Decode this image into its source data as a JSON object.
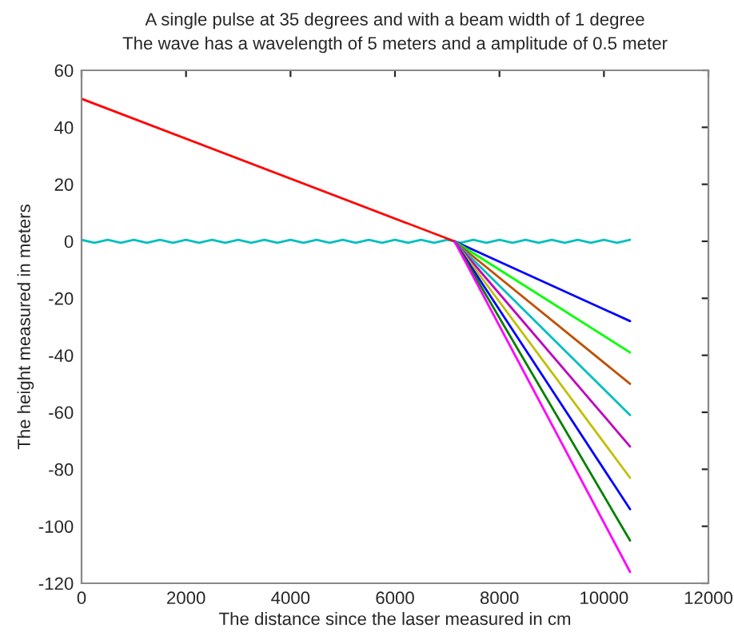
{
  "chart_data": {
    "type": "line",
    "title": "A single pulse at 35 degrees and with a beam width of 1 degree",
    "subtitle": "The wave has a wavelength of 5 meters and a amplitude of 0.5 meter",
    "xlabel": "The distance since the laser measured in cm",
    "ylabel": "The height measured in meters",
    "xlim": [
      0,
      12000
    ],
    "ylim": [
      -120,
      60
    ],
    "xticks": [
      0,
      2000,
      4000,
      6000,
      8000,
      10000,
      12000
    ],
    "yticks": [
      -120,
      -100,
      -80,
      -60,
      -40,
      -20,
      0,
      20,
      40,
      60
    ],
    "grid": false,
    "legend": false,
    "marker": "none",
    "line_style": "solid",
    "series": [
      {
        "color": "#00bfbf",
        "x": [
          0,
          250,
          500,
          750,
          1000,
          1250,
          1500,
          1750,
          2000,
          2250,
          2500,
          2750,
          3000,
          3250,
          3500,
          3750,
          4000,
          4250,
          4500,
          4750,
          5000,
          5250,
          5500,
          5750,
          6000,
          6250,
          6500,
          6750,
          7000,
          7250,
          7500,
          7750,
          8000,
          8250,
          8500,
          8750,
          9000,
          9250,
          9500,
          9750,
          10000,
          10250,
          10500
        ],
        "values": [
          0.5,
          -0.5,
          0.5,
          -0.5,
          0.5,
          -0.5,
          0.5,
          -0.5,
          0.5,
          -0.5,
          0.5,
          -0.5,
          0.5,
          -0.5,
          0.5,
          -0.5,
          0.5,
          -0.5,
          0.5,
          -0.5,
          0.5,
          -0.5,
          0.5,
          -0.5,
          0.5,
          -0.5,
          0.5,
          -0.5,
          0.5,
          -0.5,
          0.5,
          -0.5,
          0.5,
          -0.5,
          0.5,
          -0.5,
          0.5,
          -0.5,
          0.5,
          -0.5,
          0.5,
          -0.5,
          0.5
        ]
      },
      {
        "color": "#ff0000",
        "x": [
          0,
          7140
        ],
        "values": [
          50,
          0
        ]
      },
      {
        "color": "#0000ff",
        "x": [
          7140,
          10500
        ],
        "values": [
          0,
          -28
        ]
      },
      {
        "color": "#00ff00",
        "x": [
          7140,
          10500
        ],
        "values": [
          0,
          -39
        ]
      },
      {
        "color": "#c05000",
        "x": [
          7140,
          10500
        ],
        "values": [
          0,
          -50
        ]
      },
      {
        "color": "#00bfbf",
        "x": [
          7140,
          10500
        ],
        "values": [
          0,
          -61
        ]
      },
      {
        "color": "#bf00bf",
        "x": [
          7140,
          10500
        ],
        "values": [
          0,
          -72
        ]
      },
      {
        "color": "#bfbf00",
        "x": [
          7140,
          10500
        ],
        "values": [
          0,
          -83
        ]
      },
      {
        "color": "#0000ff",
        "x": [
          7140,
          10500
        ],
        "values": [
          0,
          -94
        ]
      },
      {
        "color": "#008000",
        "x": [
          7140,
          10500
        ],
        "values": [
          0,
          -105
        ]
      },
      {
        "color": "#ff00ff",
        "x": [
          7140,
          10500
        ],
        "values": [
          0,
          -116
        ]
      }
    ]
  }
}
